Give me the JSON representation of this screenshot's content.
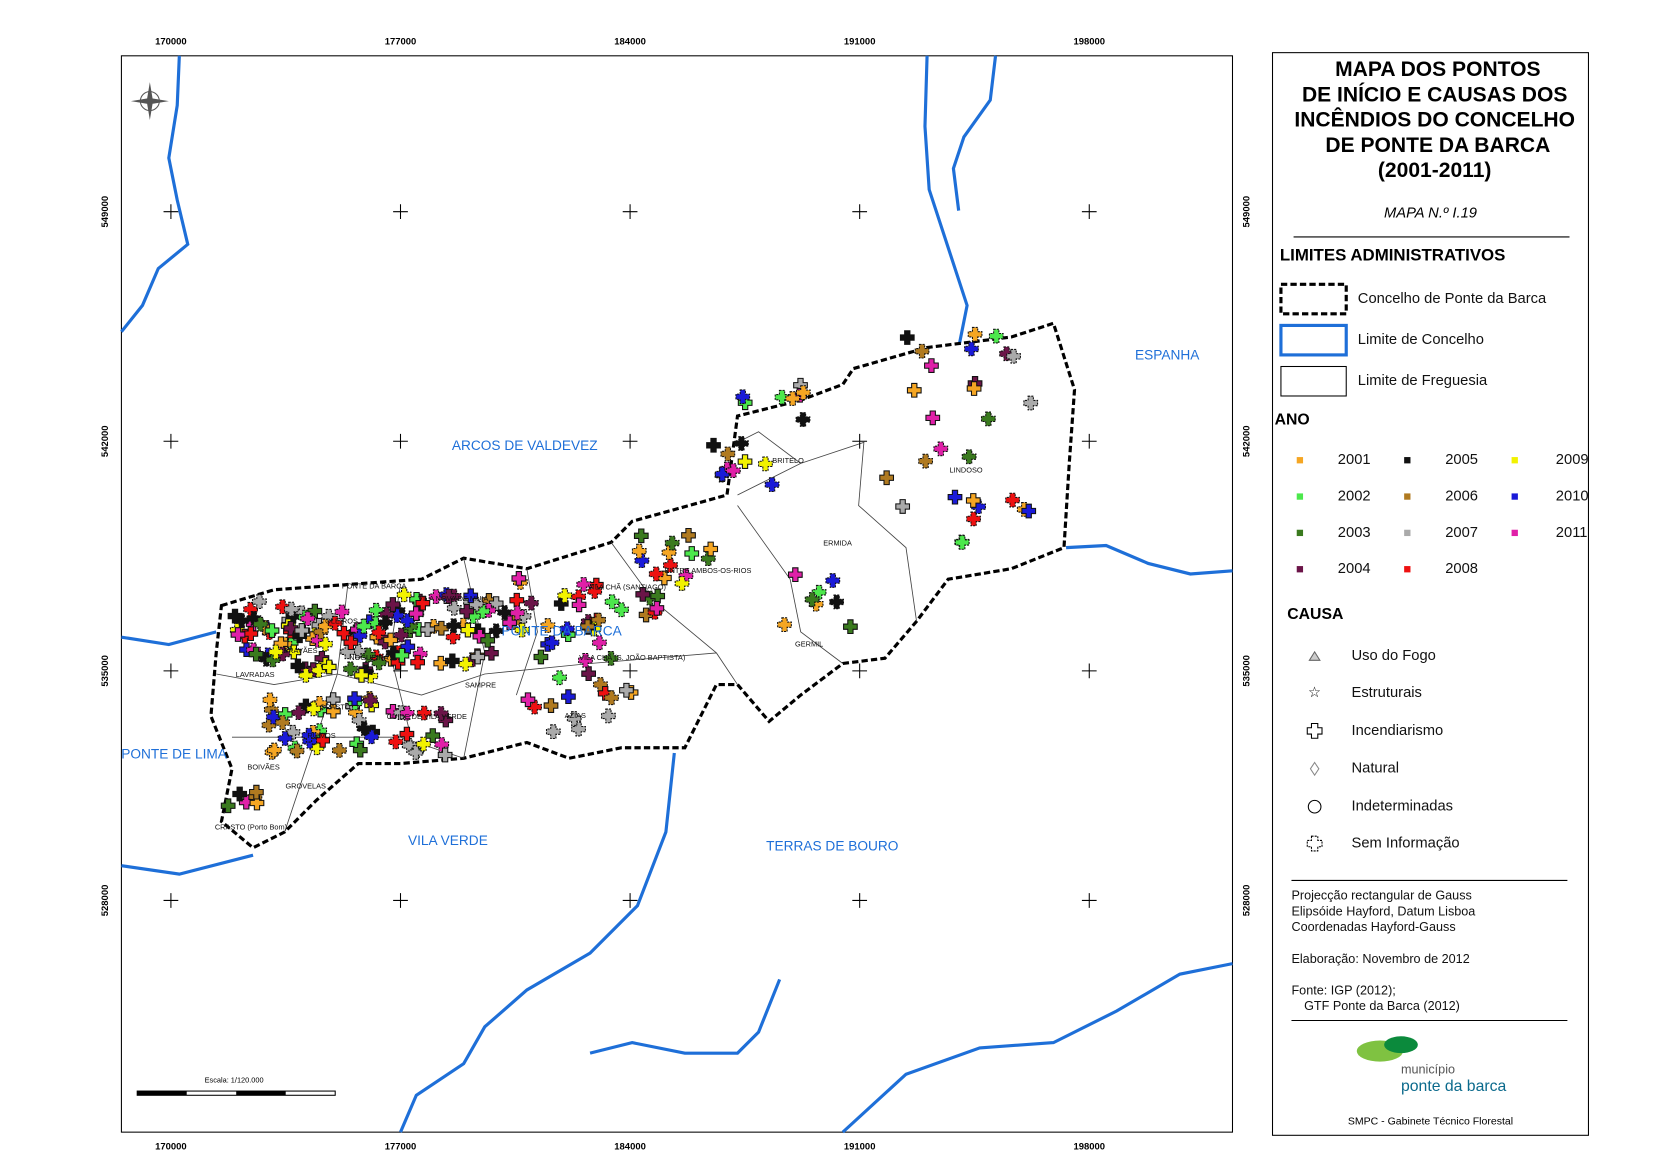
{
  "map": {
    "x_ticks": [
      170000,
      177000,
      184000,
      191000,
      198000
    ],
    "y_ticks": [
      549000,
      542000,
      535000,
      528000
    ],
    "scale_label": "Escala: 1/120.000",
    "region_labels": [
      "ARCOS DE VALDEVEZ",
      "PONTE DA BARCA",
      "ESPANHA",
      "PONTE DE LIMA",
      "VILA VERDE",
      "TERRAS DE BOURO"
    ],
    "parish_labels": [
      "BRITELO",
      "LINDOSO",
      "ERMIDA",
      "ENTRE AMBOS-OS-RIOS",
      "GERMIL",
      "VILA CHÃ (SANTIAGO)",
      "VILA CHÃ (S. JOÃO BAPTISTA)",
      "AZIAS",
      "SAMPRE",
      "LAVRADAS",
      "BRAVÃES",
      "OLEIROS",
      "NOGUEIRA",
      "CRASTO",
      "RUIVOS",
      "BOIVÃES",
      "GROVELAS",
      "CRASTO (Porto Bom)",
      "CUIDE DE VILA VERDE",
      "PONTE DA BARCA",
      "VILA NOVA DE MUIA"
    ]
  },
  "legend": {
    "title_lines": [
      "MAPA DOS PONTOS",
      "DE INÍCIO E CAUSAS DOS",
      "INCÊNDIOS DO CONCELHO",
      "DE PONTE DA BARCA",
      "(2001-2011)"
    ],
    "map_number": "MAPA N.º I.19",
    "admin_heading": "LIMITES ADMINISTRATIVOS",
    "admin_items": [
      "Concelho de Ponte da Barca",
      "Limite de Concelho",
      "Limite de Freguesia"
    ],
    "year_heading": "ANO",
    "years": [
      {
        "label": "2001",
        "color": "#f5a623"
      },
      {
        "label": "2002",
        "color": "#4ce84c"
      },
      {
        "label": "2003",
        "color": "#3a7a1e"
      },
      {
        "label": "2004",
        "color": "#6b1448"
      },
      {
        "label": "2005",
        "color": "#111111"
      },
      {
        "label": "2006",
        "color": "#b07a20"
      },
      {
        "label": "2007",
        "color": "#aaaaaa"
      },
      {
        "label": "2008",
        "color": "#ee1111"
      },
      {
        "label": "2009",
        "color": "#f2f200"
      },
      {
        "label": "2010",
        "color": "#1a1ad8"
      },
      {
        "label": "2011",
        "color": "#e020a8"
      }
    ],
    "cause_heading": "CAUSA",
    "causes": [
      "Uso do Fogo",
      "Estruturais",
      "Incendiarismo",
      "Natural",
      "Indeterminadas",
      "Sem Informação"
    ],
    "notes": [
      "Projecção rectangular de Gauss",
      "Elipsóide Hayford, Datum Lisboa",
      "Coordenadas Hayford-Gauss",
      "Elaboração: Novembro de 2012",
      "Fonte: IGP (2012);",
      "GTF Ponte da Barca (2012)"
    ],
    "logo_small": "município",
    "logo_big": "ponte da barca",
    "footer": "SMPC - Gabinete Técnico Florestal"
  }
}
